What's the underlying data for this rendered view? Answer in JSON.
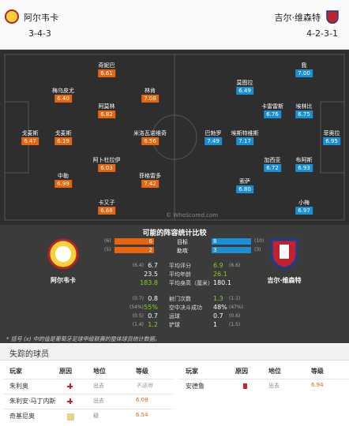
{
  "header": {
    "home": {
      "name": "阿尔韦卡",
      "formation": "3-4-3"
    },
    "away": {
      "name": "吉尔·维森特",
      "formation": "4-2-3-1"
    }
  },
  "pitch": {
    "watermark": "© WhoScored.com",
    "home_players": [
      {
        "name": "奇妮巴",
        "rating": "6.61"
      },
      {
        "name": "梅乌皮尤",
        "rating": "6.40"
      },
      {
        "name": "林肯",
        "rating": "7.08"
      },
      {
        "name": "阿莫林",
        "rating": "6.82"
      },
      {
        "name": "戈麦斯",
        "rating": "6.47"
      },
      {
        "name": "戈麦斯",
        "rating": "6.19"
      },
      {
        "name": "米洛瓦诺维奇",
        "rating": "6.56"
      },
      {
        "name": "阿卜杜拉伊",
        "rating": "6.03"
      },
      {
        "name": "中勒",
        "rating": "6.99"
      },
      {
        "name": "菲格雷多",
        "rating": "7.42"
      },
      {
        "name": "卡又子",
        "rating": "6.68"
      }
    ],
    "away_players": [
      {
        "name": "我",
        "rating": "7.00"
      },
      {
        "name": "莫图拉",
        "rating": "6.49"
      },
      {
        "name": "卡雷雷斯",
        "rating": "6.76"
      },
      {
        "name": "埃林比",
        "rating": "6.75"
      },
      {
        "name": "巴勃罗",
        "rating": "7.49"
      },
      {
        "name": "埃斯特维斯",
        "rating": "7.17"
      },
      {
        "name": "菲奥拉",
        "rating": "6.95"
      },
      {
        "name": "加西亚",
        "rating": "6.72"
      },
      {
        "name": "布阿斯",
        "rating": "6.93"
      },
      {
        "name": "索萨",
        "rating": "6.80"
      },
      {
        "name": "小梅",
        "rating": "6.97"
      }
    ]
  },
  "comparison": {
    "title": "可能的阵容统计比较",
    "home_name": "阿尔韦卡",
    "away_name": "吉尔·维森特",
    "bars": [
      {
        "label": "目标",
        "home": "6",
        "home_league": "(6)",
        "away": "8",
        "away_league": "(10)"
      },
      {
        "label": "助攻",
        "home": "2",
        "home_league": "(5)",
        "away": "3",
        "away_league": "(3)"
      }
    ],
    "rows": [
      {
        "label": "平均评分",
        "home": "6.7",
        "home_league": "(6.4)",
        "away": "6.9",
        "away_league": "(6.6)",
        "better": "away"
      },
      {
        "label": "平均年龄",
        "home": "23.5",
        "home_league": null,
        "away": "26.1",
        "away_league": null,
        "better": "away"
      },
      {
        "label": "平均身高（厘米）",
        "home": "183.8",
        "home_league": null,
        "away": "180.1",
        "away_league": null,
        "better": "home"
      },
      {
        "label": "射门次数",
        "home": "0.8",
        "home_league": "(0.7)",
        "away": "1.3",
        "away_league": "(1.1)",
        "better": "away"
      },
      {
        "label": "空中决斗成功",
        "home": "55%",
        "home_league": "(54%)",
        "away": "48%",
        "away_league": "(47%)",
        "better": "home"
      },
      {
        "label": "运球",
        "home": "0.7",
        "home_league": "(0.5)",
        "away": "0.7",
        "away_league": "(0.6)",
        "better": null
      },
      {
        "label": "铲球",
        "home": "1.2",
        "home_league": "(1.4)",
        "away": "1",
        "away_league": "(1.5)",
        "better": "home"
      }
    ],
    "footnote": "* 括号 (x) 中的值是葡萄牙足球甲级联赛的整体球员统计数据。"
  },
  "missing": {
    "title": "失踪的球员",
    "columns": [
      "玩家",
      "原因",
      "地位",
      "等级"
    ],
    "home": [
      {
        "player": "朱利奥",
        "reason": "injury",
        "status": "出去",
        "rating": "不适用"
      },
      {
        "player": "朱利安·马丁内斯",
        "reason": "injury",
        "status": "出去",
        "rating": "6.08"
      },
      {
        "player": "奇基尼奥",
        "reason": "doubt",
        "status": "疑",
        "rating": "6.54"
      }
    ],
    "away": [
      {
        "player": "安德鲁",
        "reason": "red-card",
        "status": "出去",
        "rating": "6.94"
      }
    ]
  }
}
